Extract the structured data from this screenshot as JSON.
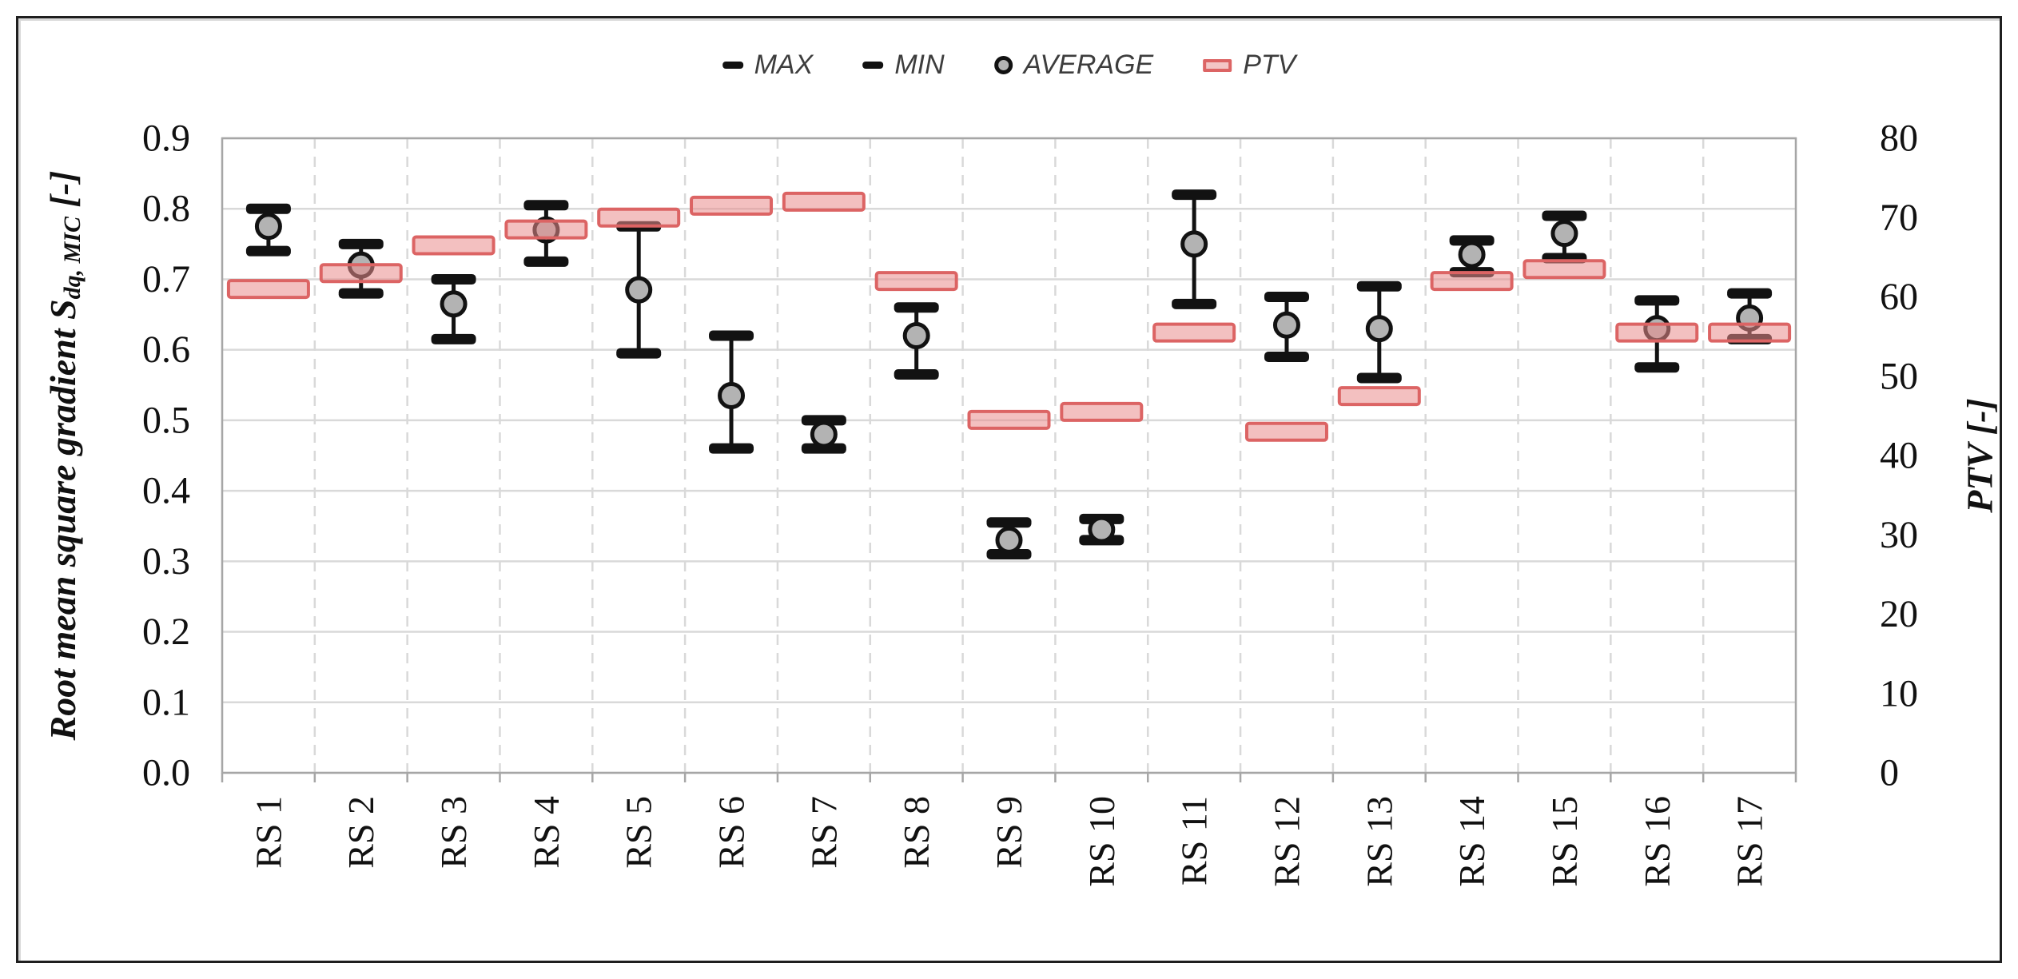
{
  "legend": {
    "items": [
      {
        "label": "MAX",
        "marker": "dash"
      },
      {
        "label": "MIN",
        "marker": "dash"
      },
      {
        "label": "AVERAGE",
        "marker": "circle"
      },
      {
        "label": "PTV",
        "marker": "ptv-bar"
      }
    ]
  },
  "left_axis": {
    "title_main": "Root mean square gradient S",
    "title_sub": "dq, MIC",
    "title_unit": " [-]",
    "ticks": [
      "0.0",
      "0.1",
      "0.2",
      "0.3",
      "0.4",
      "0.5",
      "0.6",
      "0.7",
      "0.8",
      "0.9"
    ]
  },
  "right_axis": {
    "title": "PTV [-]",
    "ticks": [
      "0",
      "10",
      "20",
      "30",
      "40",
      "50",
      "60",
      "70",
      "80"
    ]
  },
  "chart_data": {
    "type": "error-bar markers (left axis) + floating bar markers (right axis), dual y-axis",
    "categories": [
      "RS 1",
      "RS 2",
      "RS 3",
      "RS 4",
      "RS 5",
      "RS 6",
      "RS 7",
      "RS 8",
      "RS 9",
      "RS 10",
      "RS 11",
      "RS 12",
      "RS 13",
      "RS 14",
      "RS 15",
      "RS 16",
      "RS 17"
    ],
    "series": [
      {
        "name": "MAX",
        "axis": "left",
        "values": [
          0.8,
          0.75,
          0.7,
          0.805,
          0.775,
          0.62,
          0.5,
          0.66,
          0.355,
          0.36,
          0.82,
          0.675,
          0.69,
          0.755,
          0.79,
          0.67,
          0.68
        ]
      },
      {
        "name": "MIN",
        "axis": "left",
        "values": [
          0.74,
          0.68,
          0.615,
          0.725,
          0.595,
          0.46,
          0.46,
          0.565,
          0.31,
          0.33,
          0.665,
          0.59,
          0.56,
          0.71,
          0.73,
          0.575,
          0.615
        ]
      },
      {
        "name": "AVERAGE",
        "axis": "left",
        "values": [
          0.775,
          0.72,
          0.665,
          0.77,
          0.685,
          0.535,
          0.48,
          0.62,
          0.33,
          0.345,
          0.75,
          0.635,
          0.63,
          0.735,
          0.765,
          0.63,
          0.645
        ]
      },
      {
        "name": "PTV",
        "axis": "right",
        "values": [
          61,
          63,
          66.5,
          68.5,
          70,
          71.5,
          72,
          62,
          44.5,
          45.5,
          55.5,
          43,
          47.5,
          62,
          63.5,
          55.5,
          55.5
        ]
      }
    ],
    "left_ylim": [
      0,
      0.9
    ],
    "left_step": 0.1,
    "right_ylim": [
      0,
      80
    ],
    "right_step": 10,
    "grid": "horizontal solid lines at left-axis steps; vertical dashed lines at category boundaries",
    "legend_position": "top-center"
  },
  "colors": {
    "error_bar": "#121212",
    "average_fill": "#b3b3b3",
    "ptv_fill": "#e98c8c",
    "ptv_stroke": "#dc6464",
    "gridline": "#d9d9d9",
    "frame": "#a6a6a6",
    "text": "#111111"
  }
}
